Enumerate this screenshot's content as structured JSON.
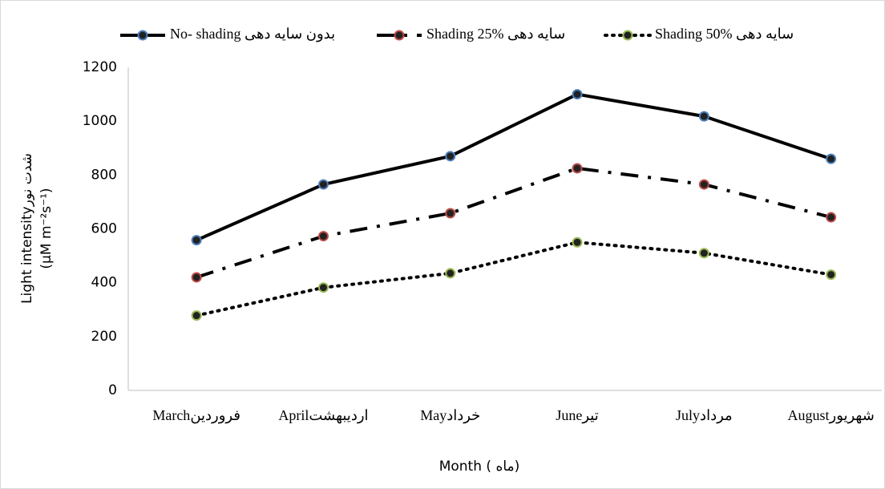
{
  "chart_data": {
    "type": "line",
    "categories": [
      "Marchفروردین",
      "Aprilاردیبهشت",
      "Mayخرداد",
      "Juneتیر",
      "Julyمرداد",
      "Augustشهریور"
    ],
    "series": [
      {
        "name": "No- shading بدون سایه دهی",
        "color": "#000000",
        "marker_color": "#4a7ebb",
        "dash": "solid",
        "values": [
          558,
          765,
          870,
          1100,
          1018,
          860
        ]
      },
      {
        "name": "Shading 25% سایه دهی",
        "color": "#000000",
        "marker_color": "#be4b48",
        "dash": "dashdot",
        "values": [
          420,
          573,
          658,
          825,
          765,
          643
        ]
      },
      {
        "name": "Shading 50% سایه دهی",
        "color": "#000000",
        "marker_color": "#98b954",
        "dash": "dotted",
        "values": [
          278,
          382,
          435,
          550,
          510,
          430
        ]
      }
    ],
    "ylim": [
      0,
      1200
    ],
    "yticks": [
      0,
      200,
      400,
      600,
      800,
      1000,
      1200
    ],
    "y_label": [
      "Light intensityشدت نور",
      "(µM m⁻²s⁻¹)"
    ],
    "x_label": "Month ( ماه)",
    "legend": "top",
    "grid": false
  }
}
